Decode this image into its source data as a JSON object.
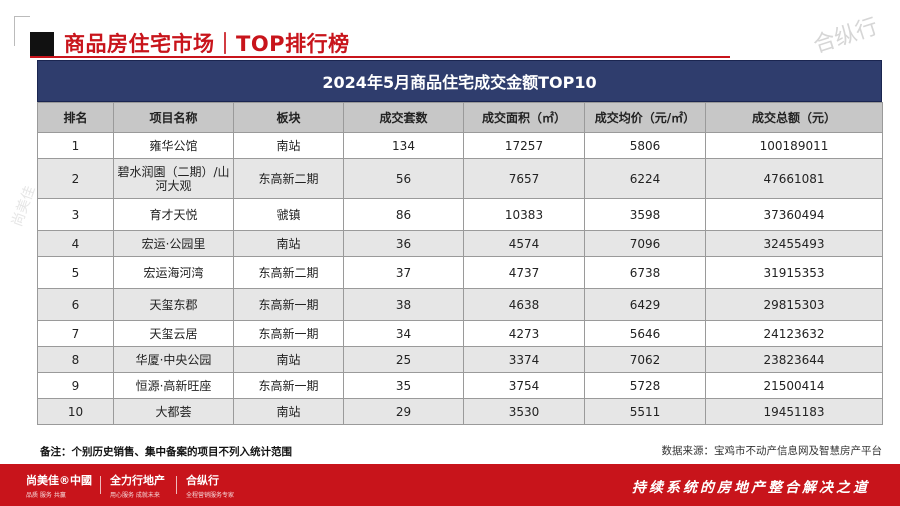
{
  "header": {
    "title": "商品房住宅市场｜TOP排行榜",
    "watermark": "合纵行"
  },
  "table": {
    "title": "2024年5月商品住宅成交金额TOP10",
    "columns": [
      "排名",
      "项目名称",
      "板块",
      "成交套数",
      "成交面积（㎡）",
      "成交均价（元/㎡）",
      "成交总额（元）"
    ],
    "rows": [
      [
        "1",
        "雍华公馆",
        "南站",
        "134",
        "17257",
        "5806",
        "100189011"
      ],
      [
        "2",
        "碧水润園（二期）/山河大观",
        "东高新二期",
        "56",
        "7657",
        "6224",
        "47661081"
      ],
      [
        "3",
        "育才天悦",
        "虢镇",
        "86",
        "10383",
        "3598",
        "37360494"
      ],
      [
        "4",
        "宏运·公园里",
        "南站",
        "36",
        "4574",
        "7096",
        "32455493"
      ],
      [
        "5",
        "宏运海河湾",
        "东高新二期",
        "37",
        "4737",
        "6738",
        "31915353"
      ],
      [
        "6",
        "天玺东郡",
        "东高新一期",
        "38",
        "4638",
        "6429",
        "29815303"
      ],
      [
        "7",
        "天玺云居",
        "东高新一期",
        "34",
        "4273",
        "5646",
        "24123632"
      ],
      [
        "8",
        "华厦·中央公园",
        "南站",
        "25",
        "3374",
        "7062",
        "23823644"
      ],
      [
        "9",
        "恒源·高新旺座",
        "东高新一期",
        "35",
        "3754",
        "5728",
        "21500414"
      ],
      [
        "10",
        "大都荟",
        "南站",
        "29",
        "3530",
        "5511",
        "19451183"
      ]
    ]
  },
  "footnote": "备注：个别历史销售、集中备案的项目不列入统计范围",
  "source": "数据来源：宝鸡市不动产信息网及智慧房产平台",
  "footer": {
    "brands": [
      {
        "main": "尚美佳®中國",
        "sub": "品质 服务 共赢"
      },
      {
        "main": "全力行地产",
        "sub": "用心服务 成就未来"
      },
      {
        "main": "合纵行",
        "sub": "全程营销服务专家"
      }
    ],
    "slogan": "持续系统的房地产整合解决之道"
  },
  "colors": {
    "brand_red": "#c8141b",
    "table_header": "#2f3d6d",
    "column_header": "#c7c7c7",
    "zebra": "#e6e6e6"
  }
}
